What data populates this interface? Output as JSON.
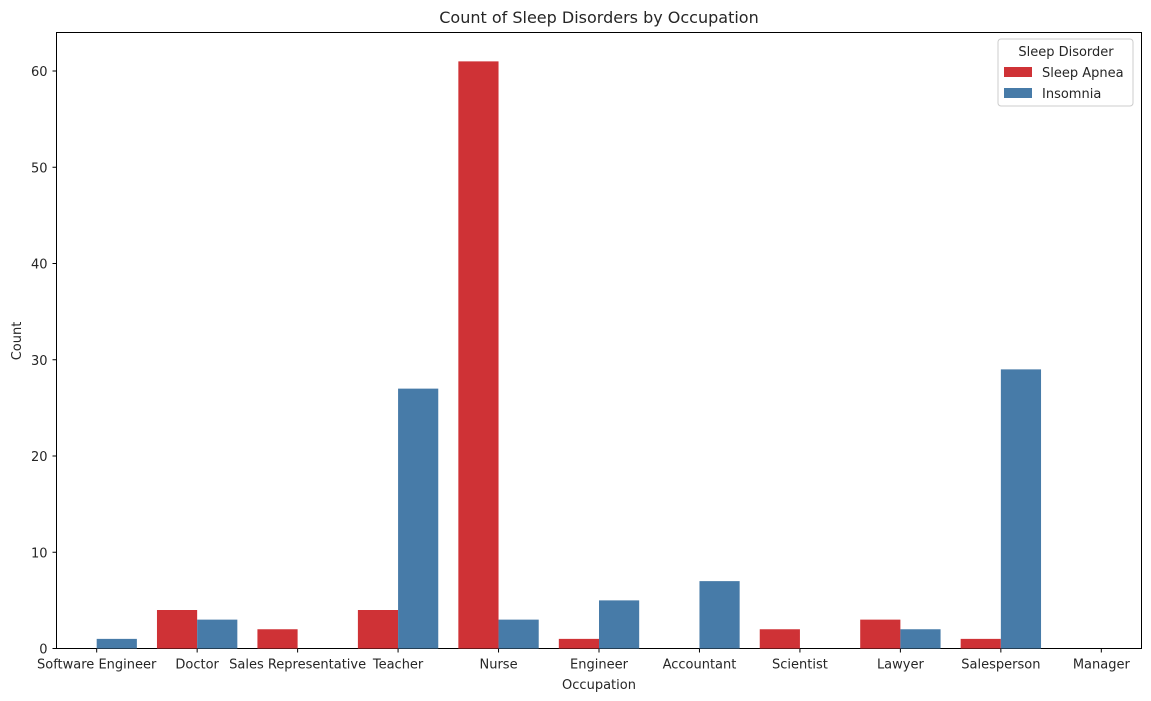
{
  "chart_data": {
    "type": "bar",
    "title": "Count of Sleep Disorders by Occupation",
    "xlabel": "Occupation",
    "ylabel": "Count",
    "categories": [
      "Software Engineer",
      "Doctor",
      "Sales Representative",
      "Teacher",
      "Nurse",
      "Engineer",
      "Accountant",
      "Scientist",
      "Lawyer",
      "Salesperson",
      "Manager"
    ],
    "series": [
      {
        "name": "Sleep Apnea",
        "color": "#cf3236",
        "values": [
          0,
          4,
          2,
          4,
          61,
          1,
          0,
          2,
          3,
          1,
          0
        ]
      },
      {
        "name": "Insomnia",
        "color": "#477ba8",
        "values": [
          1,
          3,
          0,
          27,
          3,
          5,
          7,
          0,
          2,
          29,
          0
        ]
      }
    ],
    "ylim": [
      0,
      64
    ],
    "yticks": [
      0,
      10,
      20,
      30,
      40,
      50,
      60
    ],
    "legend": {
      "title": "Sleep Disorder",
      "position": "top-right"
    },
    "grid": false
  }
}
